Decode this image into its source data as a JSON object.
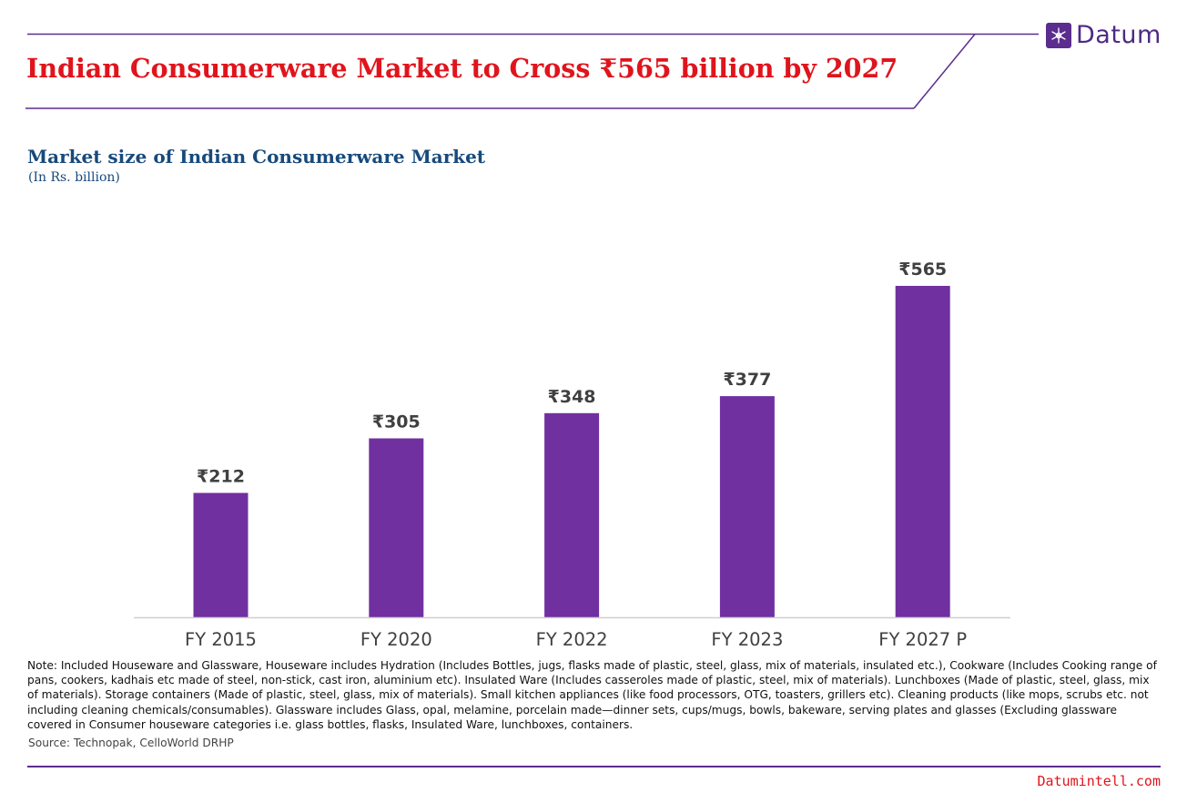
{
  "brand": {
    "name": "Datum",
    "color": "#5b2d8e",
    "icon": "snowflake-icon"
  },
  "header": {
    "title": "Indian Consumerware Market to Cross ₹565 billion by 2027",
    "title_color": "#e0141c"
  },
  "chart_data": {
    "type": "bar",
    "title": "Market size of Indian Consumerware Market",
    "subtitle": "(In Rs. billion)",
    "categories": [
      "FY 2015",
      "FY 2020",
      "FY 2022",
      "FY 2023",
      "FY 2027 P"
    ],
    "values": [
      212,
      305,
      348,
      377,
      565
    ],
    "data_labels": [
      "₹212",
      "₹305",
      "₹348",
      "₹377",
      "₹565"
    ],
    "ylim": [
      0,
      565
    ],
    "grid": false,
    "legend": "none",
    "bar_color": "#7030a0"
  },
  "footnote": {
    "note": "Note: Included Houseware and Glassware, Houseware includes Hydration (Includes Bottles, jugs, flasks made of plastic, steel, glass, mix of materials, insulated etc.), Cookware (Includes Cooking range of pans, cookers, kadhais etc made of steel, non-stick, cast iron, aluminium etc). Insulated Ware (Includes casseroles made of plastic, steel, mix of materials). Lunchboxes (Made of plastic, steel, glass, mix of materials). Storage containers (Made of plastic, steel, glass, mix of materials). Small kitchen appliances (like food processors, OTG, toasters, grillers etc). Cleaning products (like mops, scrubs etc. not including cleaning chemicals/consumables). Glassware includes Glass, opal, melamine, porcelain made—dinner sets, cups/mugs, bowls, bakeware, serving plates and glasses (Excluding glassware covered in Consumer houseware categories i.e. glass bottles, flasks, Insulated Ware, lunchboxes, containers.",
    "source": "Source: Technopak, CelloWorld DRHP"
  },
  "footer": {
    "url": "Datumintell.com"
  }
}
